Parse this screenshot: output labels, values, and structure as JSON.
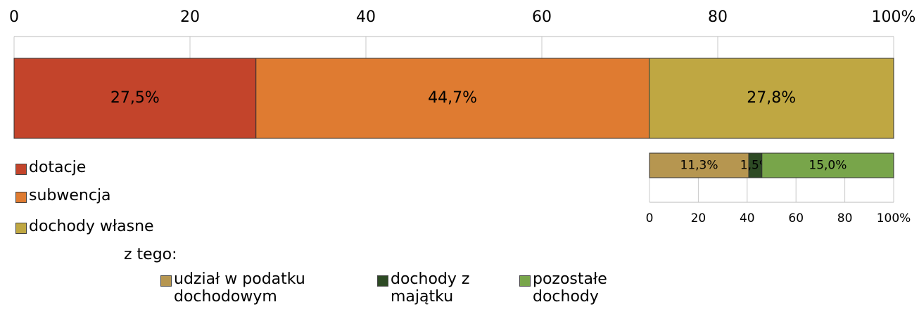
{
  "chart_data": [
    {
      "type": "bar",
      "orientation": "horizontal",
      "stacked": "percent",
      "xlim": [
        0,
        100
      ],
      "xticks": [
        0,
        20,
        40,
        60,
        80,
        {
          "value": 100,
          "label": "100%"
        }
      ],
      "grid": true,
      "series": [
        {
          "name": "dotacje",
          "color": "#c3442b",
          "values": [
            27.5
          ],
          "value_labels": [
            "27,5%"
          ]
        },
        {
          "name": "subwencja",
          "color": "#df7b31",
          "values": [
            44.7
          ],
          "value_labels": [
            "44,7%"
          ]
        },
        {
          "name": "dochody własne",
          "color": "#bfa742",
          "values": [
            27.8
          ],
          "value_labels": [
            "27,8%"
          ]
        }
      ]
    },
    {
      "type": "bar",
      "orientation": "horizontal",
      "stacked": "percent",
      "annotation": "z tego:",
      "xlim": [
        0,
        100
      ],
      "xticks": [
        0,
        20,
        40,
        60,
        80,
        {
          "value": 100,
          "label": "100%"
        }
      ],
      "grid": true,
      "series": [
        {
          "name": "udział w podatku dochodowym",
          "color": "#b69650",
          "values": [
            11.3
          ],
          "value_labels": [
            "11,3%"
          ]
        },
        {
          "name": "dochody z majątku",
          "color": "#2d4a24",
          "values": [
            1.5
          ],
          "value_labels": [
            "1,5%"
          ]
        },
        {
          "name": "pozostałe dochody",
          "color": "#78a54a",
          "values": [
            15.0
          ],
          "value_labels": [
            "15,0%"
          ]
        }
      ]
    }
  ]
}
